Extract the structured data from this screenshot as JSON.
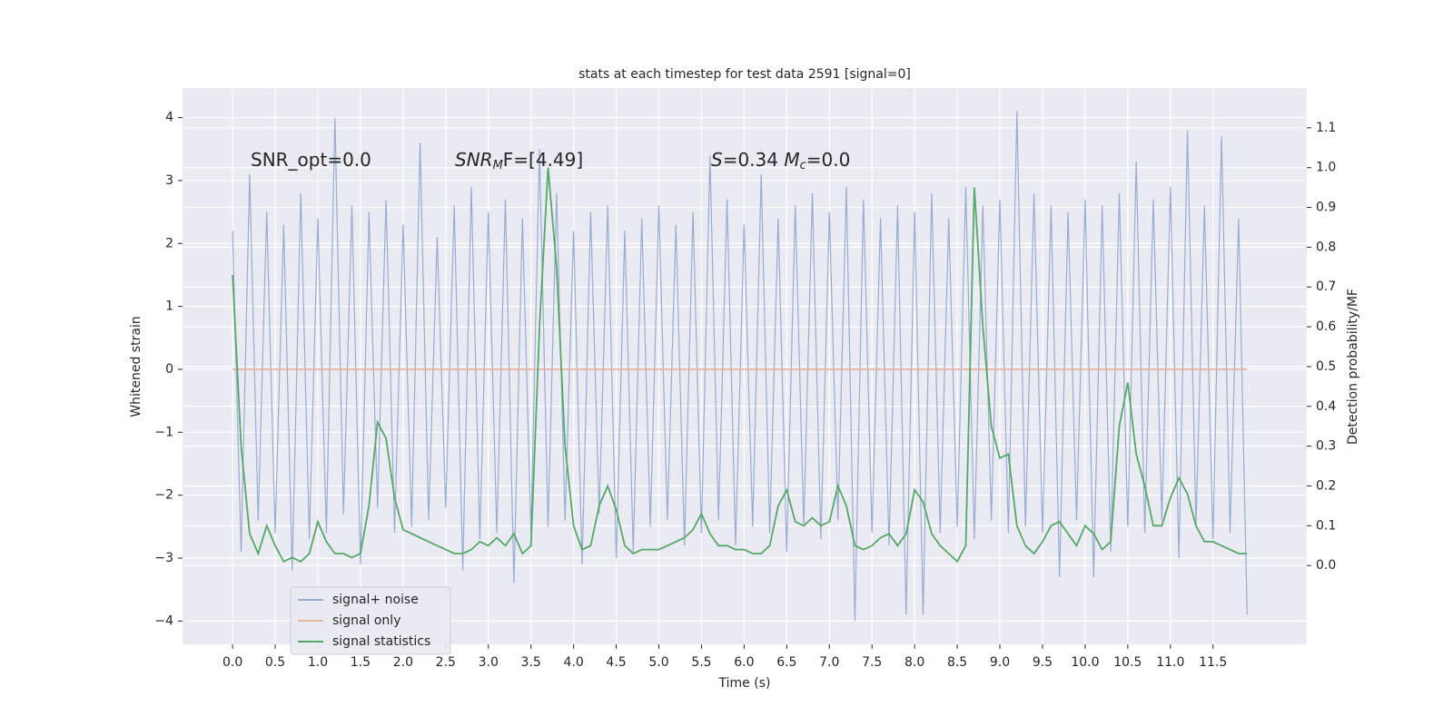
{
  "chart_data": {
    "type": "line",
    "title": "stats at each timestep for test data 2591 [signal=0]",
    "xlabel": "Time (s)",
    "ylabel": "Whitened strain",
    "y2label": "Detection probability/MF",
    "annotations": [
      [
        "SNR_opt=0.0"
      ],
      [
        "SNR",
        "M",
        "F=[4.49]"
      ],
      [
        "S",
        "=0.34   ",
        "M",
        "c",
        "=0.0"
      ]
    ],
    "grid": true,
    "legend": "lower left",
    "xlim": [
      -0.587,
      12.6
    ],
    "ylim": [
      -4.37,
      4.47
    ],
    "y2lim": [
      -0.198,
      1.2
    ],
    "xticks": [
      {
        "value": 0,
        "label": "0.0"
      },
      0.5,
      {
        "value": 1,
        "label": "1.0"
      },
      1.5,
      {
        "value": 2,
        "label": "2.0"
      },
      2.5,
      {
        "value": 3,
        "label": "3.0"
      },
      3.5,
      {
        "value": 4,
        "label": "4.0"
      },
      4.5,
      {
        "value": 5,
        "label": "5.0"
      },
      5.5,
      {
        "value": 6,
        "label": "6.0"
      },
      6.5,
      {
        "value": 7,
        "label": "7.0"
      },
      7.5,
      {
        "value": 8,
        "label": "8.0"
      },
      8.5,
      {
        "value": 9,
        "label": "9.0"
      },
      9.5,
      {
        "value": 10,
        "label": "10.0"
      },
      10.5,
      {
        "value": 11,
        "label": "11.0"
      },
      11.5
    ],
    "yticks": [
      {
        "value": -4,
        "label": "−4"
      },
      {
        "value": -3,
        "label": "−3"
      },
      {
        "value": -2,
        "label": "−2"
      },
      {
        "value": -1,
        "label": "−1"
      },
      0,
      1,
      2,
      3,
      4
    ],
    "y2ticks": [
      {
        "value": 0,
        "label": "0.0"
      },
      0.1,
      0.2,
      0.3,
      0.4,
      0.5,
      0.6,
      0.7,
      0.8,
      0.9,
      {
        "value": 1,
        "label": "1.0"
      },
      1.1
    ],
    "x": [
      0,
      0.1,
      0.2,
      0.3,
      0.4,
      0.5,
      0.6,
      0.7,
      0.8,
      0.9,
      1,
      1.1,
      1.2,
      1.3,
      1.4,
      1.5,
      1.6,
      1.7,
      1.8,
      1.9,
      2,
      2.1,
      2.2,
      2.3,
      2.4,
      2.5,
      2.6,
      2.7,
      2.8,
      2.9,
      3,
      3.1,
      3.2,
      3.3,
      3.4,
      3.5,
      3.6,
      3.7,
      3.8,
      3.9,
      4,
      4.1,
      4.2,
      4.3,
      4.4,
      4.5,
      4.6,
      4.7,
      4.8,
      4.9,
      5,
      5.1,
      5.2,
      5.3,
      5.4,
      5.5,
      5.6,
      5.7,
      5.8,
      5.9,
      6,
      6.1,
      6.2,
      6.3,
      6.4,
      6.5,
      6.6,
      6.7,
      6.8,
      6.9,
      7,
      7.1,
      7.2,
      7.3,
      7.4,
      7.5,
      7.6,
      7.7,
      7.8,
      7.9,
      8,
      8.1,
      8.2,
      8.3,
      8.4,
      8.5,
      8.6,
      8.7,
      8.8,
      8.9,
      9,
      9.1,
      9.2,
      9.3,
      9.4,
      9.5,
      9.6,
      9.7,
      9.8,
      9.9,
      10,
      10.1,
      10.2,
      10.3,
      10.4,
      10.5,
      10.6,
      10.7,
      10.8,
      10.9,
      11,
      11.1,
      11.2,
      11.3,
      11.4,
      11.5,
      11.6,
      11.7,
      11.8,
      11.9
    ],
    "series": [
      {
        "name": "signal+ noise",
        "color": "#9aabd1",
        "values": [
          2.2,
          -2.9,
          3.1,
          -2.4,
          2.5,
          -2.6,
          2.3,
          -3.2,
          2.8,
          -2.7,
          2.4,
          -2.6,
          4.0,
          -2.3,
          2.6,
          -3.1,
          2.5,
          -2.2,
          2.7,
          -2.6,
          2.3,
          -2.5,
          3.6,
          -2.4,
          2.1,
          -2.2,
          2.6,
          -3.2,
          2.9,
          -2.7,
          2.5,
          -2.6,
          2.7,
          -3.4,
          2.4,
          -2.6,
          3.5,
          -2.5,
          2.8,
          -2.4,
          2.2,
          -3.1,
          2.5,
          -2.3,
          2.6,
          -3.0,
          2.2,
          -2.9,
          2.4,
          -2.5,
          2.6,
          -2.4,
          2.3,
          -2.8,
          2.5,
          -2.6,
          3.4,
          -2.4,
          2.7,
          -2.8,
          2.3,
          -2.5,
          3.1,
          -2.6,
          2.4,
          -2.9,
          2.6,
          -2.5,
          2.8,
          -2.7,
          2.5,
          -2.4,
          2.9,
          -4.0,
          2.7,
          -2.6,
          2.4,
          -2.8,
          2.6,
          -3.9,
          2.5,
          -3.9,
          2.8,
          -2.6,
          2.4,
          -2.5,
          2.9,
          -2.7,
          2.6,
          -2.4,
          2.7,
          -2.6,
          4.1,
          -2.5,
          2.8,
          -2.6,
          2.6,
          -3.3,
          2.5,
          -2.4,
          2.7,
          -3.3,
          2.6,
          -2.9,
          2.8,
          -2.5,
          3.3,
          -2.6,
          2.7,
          -2.4,
          2.9,
          -3.0,
          3.8,
          -2.5,
          2.6,
          -2.7,
          3.7,
          -2.6,
          2.4,
          -3.9
        ]
      },
      {
        "name": "signal only",
        "color": "#e9b3a0",
        "values": [
          0,
          0,
          0,
          0,
          0,
          0,
          0,
          0,
          0,
          0,
          0,
          0,
          0,
          0,
          0,
          0,
          0,
          0,
          0,
          0,
          0,
          0,
          0,
          0,
          0,
          0,
          0,
          0,
          0,
          0,
          0,
          0,
          0,
          0,
          0,
          0,
          0,
          0,
          0,
          0,
          0,
          0,
          0,
          0,
          0,
          0,
          0,
          0,
          0,
          0,
          0,
          0,
          0,
          0,
          0,
          0,
          0,
          0,
          0,
          0,
          0,
          0,
          0,
          0,
          0,
          0,
          0,
          0,
          0,
          0,
          0,
          0,
          0,
          0,
          0,
          0,
          0,
          0,
          0,
          0,
          0,
          0,
          0,
          0,
          0,
          0,
          0,
          0,
          0,
          0,
          0,
          0,
          0,
          0,
          0,
          0,
          0,
          0,
          0,
          0,
          0,
          0,
          0,
          0,
          0,
          0,
          0,
          0,
          0,
          0,
          0,
          0,
          0,
          0,
          0,
          0,
          0,
          0,
          0,
          0
        ]
      },
      {
        "name": "signal statistics",
        "color": "#55a868",
        "axis": "y2",
        "values": [
          0.73,
          0.3,
          0.08,
          0.03,
          0.1,
          0.05,
          0.01,
          0.02,
          0.01,
          0.03,
          0.11,
          0.06,
          0.03,
          0.03,
          0.02,
          0.03,
          0.15,
          0.36,
          0.32,
          0.17,
          0.09,
          0.08,
          0.07,
          0.06,
          0.05,
          0.04,
          0.03,
          0.03,
          0.04,
          0.06,
          0.05,
          0.07,
          0.05,
          0.08,
          0.03,
          0.05,
          0.6,
          1.0,
          0.75,
          0.3,
          0.1,
          0.04,
          0.05,
          0.15,
          0.2,
          0.14,
          0.05,
          0.03,
          0.04,
          0.04,
          0.04,
          0.05,
          0.06,
          0.07,
          0.09,
          0.13,
          0.08,
          0.05,
          0.05,
          0.04,
          0.04,
          0.03,
          0.03,
          0.05,
          0.15,
          0.19,
          0.11,
          0.1,
          0.12,
          0.1,
          0.11,
          0.2,
          0.15,
          0.05,
          0.04,
          0.05,
          0.07,
          0.08,
          0.05,
          0.08,
          0.19,
          0.16,
          0.08,
          0.05,
          0.03,
          0.01,
          0.05,
          0.95,
          0.6,
          0.35,
          0.27,
          0.28,
          0.1,
          0.05,
          0.03,
          0.06,
          0.1,
          0.11,
          0.08,
          0.05,
          0.1,
          0.08,
          0.04,
          0.06,
          0.35,
          0.46,
          0.28,
          0.2,
          0.1,
          0.1,
          0.17,
          0.22,
          0.18,
          0.1,
          0.06,
          0.06,
          0.05,
          0.04,
          0.03,
          0.03
        ]
      }
    ]
  }
}
